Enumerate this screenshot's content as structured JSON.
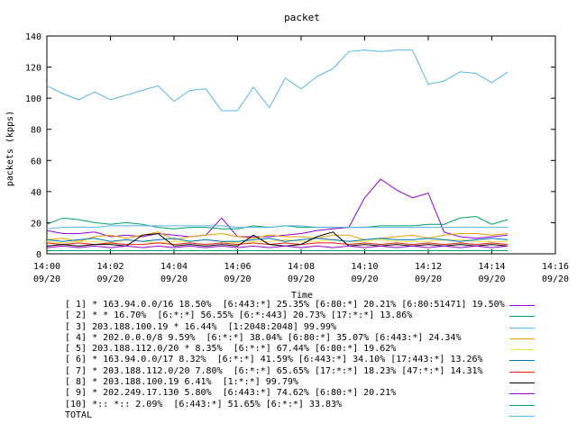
{
  "chart_data": {
    "type": "line",
    "title": "packet",
    "xlabel": "Time",
    "ylabel": "packets (kpps)",
    "ylim": [
      0,
      140
    ],
    "yticks": [
      0,
      20,
      40,
      60,
      80,
      100,
      120,
      140
    ],
    "xlim": [
      0,
      16
    ],
    "xtick_values": [
      0,
      2,
      4,
      6,
      8,
      10,
      12,
      14,
      16
    ],
    "xtick_labels": [
      [
        "14:00",
        "09/20"
      ],
      [
        "14:02",
        "09/20"
      ],
      [
        "14:04",
        "09/20"
      ],
      [
        "14:06",
        "09/20"
      ],
      [
        "14:08",
        "09/20"
      ],
      [
        "14:10",
        "09/20"
      ],
      [
        "14:12",
        "09/20"
      ],
      [
        "14:14",
        "09/20"
      ],
      [
        "14:16",
        "09/20"
      ]
    ],
    "grid": false,
    "legend_position": "below",
    "x": [
      0,
      0.5,
      1,
      1.5,
      2,
      2.5,
      3,
      3.5,
      4,
      4.5,
      5,
      5.5,
      6,
      6.5,
      7,
      7.5,
      8,
      8.5,
      9,
      9.5,
      10,
      10.5,
      11,
      11.5,
      12,
      12.5,
      13,
      13.5,
      14,
      14.5
    ],
    "series": [
      {
        "name": "[ 1] * 163.94.0.0/16 18.50%  [6:443:*] 25.35% [6:80:*] 20.21% [6:80:51471] 19.50%",
        "color": "#9400d3",
        "values": [
          15,
          13,
          13,
          14,
          11,
          12,
          11,
          13,
          12,
          11,
          12,
          23,
          11,
          11,
          11,
          12,
          13,
          15,
          16,
          17,
          36,
          48,
          41,
          36,
          39,
          14,
          11,
          10,
          11,
          12
        ]
      },
      {
        "name": "[ 2] * * 16.70%  [6:*:*] 56.55% [6:*:443] 20.73% [17:*:*] 13.86%",
        "color": "#009e73",
        "values": [
          19,
          23,
          22,
          20,
          19,
          20,
          19,
          17,
          16,
          17,
          17,
          16,
          16,
          18,
          17,
          18,
          17,
          17,
          17,
          17,
          17,
          18,
          18,
          18,
          19,
          19,
          23,
          24,
          19,
          22
        ]
      },
      {
        "name": "[ 3] 203.188.100.19 * 16.44%  [1:2048:2048] 99.99%",
        "color": "#56b4e9",
        "values": [
          16,
          17,
          17,
          17,
          18,
          18,
          18,
          18,
          18,
          18,
          18,
          18,
          17,
          17,
          17,
          18,
          18,
          17,
          17,
          17,
          17,
          17,
          17,
          17,
          17,
          17,
          17,
          17,
          17,
          17
        ]
      },
      {
        "name": "[ 4] * 202.0.0.0/8 9.59%  [6:*:*] 38.04% [6:80:*] 35.07% [6:443:*] 24.34%",
        "color": "#e69f00",
        "values": [
          9,
          10,
          8,
          11,
          12,
          10,
          12,
          14,
          9,
          11,
          12,
          13,
          11,
          10,
          12,
          11,
          11,
          10,
          12,
          12,
          9,
          10,
          11,
          12,
          10,
          12,
          13,
          13,
          12,
          13
        ]
      },
      {
        "name": "[ 5] 203.188.112.0/20 * 8.35%  [6:*:*] 67.44% [6:80:*] 19.62%",
        "color": "#f0e442",
        "values": [
          8,
          7,
          8,
          8,
          7,
          9,
          8,
          7,
          8,
          8,
          9,
          8,
          7,
          8,
          8,
          9,
          8,
          8,
          9,
          8,
          8,
          9,
          8,
          8,
          8,
          9,
          9,
          8,
          8,
          8
        ]
      },
      {
        "name": "[ 6] * 163.94.0.0/17 8.32%  [6:*:*] 41.59% [6:443:*] 34.10% [17:443:*] 13.26%",
        "color": "#0072b2",
        "values": [
          9,
          8,
          9,
          10,
          8,
          9,
          8,
          9,
          10,
          8,
          9,
          8,
          8,
          9,
          10,
          8,
          9,
          10,
          9,
          8,
          9,
          10,
          9,
          9,
          10,
          9,
          8,
          9,
          10,
          9
        ]
      },
      {
        "name": "[ 7] * 203.188.112.0/20 7.80%  [6:*:*] 65.65% [17:*:*] 18.23% [47:*:*] 14.31%",
        "color": "#e51e10",
        "values": [
          7,
          6,
          7,
          6,
          7,
          6,
          6,
          7,
          6,
          7,
          6,
          7,
          6,
          7,
          6,
          7,
          6,
          7,
          7,
          6,
          7,
          6,
          7,
          6,
          7,
          6,
          7,
          6,
          7,
          6
        ]
      },
      {
        "name": "[ 8] * 203.188.100.19 6.41%  [1:*:*] 99.79%",
        "color": "#000000",
        "values": [
          5,
          6,
          5,
          6,
          6,
          5,
          12,
          13,
          5,
          6,
          5,
          6,
          5,
          12,
          6,
          5,
          6,
          11,
          14,
          5,
          6,
          5,
          6,
          5,
          6,
          5,
          6,
          5,
          6,
          5
        ]
      },
      {
        "name": "[ 9] * 202.249.17.130 5.80%  [6:443:*] 74.62% [6:80:*] 20.21%",
        "color": "#9400d3",
        "values": [
          4,
          5,
          4,
          5,
          4,
          5,
          4,
          5,
          4,
          5,
          4,
          5,
          4,
          5,
          4,
          5,
          4,
          5,
          4,
          5,
          4,
          5,
          4,
          5,
          4,
          5,
          4,
          5,
          4,
          5
        ]
      },
      {
        "name": "[10] *:: *:: 2.09%  [6:443:*] 51.65% [6:*:*] 33.83%",
        "color": "#009e73",
        "values": [
          2,
          2,
          2,
          2,
          2,
          2,
          2,
          2,
          2,
          2,
          2,
          2,
          2,
          2,
          2,
          2,
          2,
          2,
          2,
          2,
          2,
          2,
          2,
          2,
          2,
          2,
          2,
          2,
          2,
          2
        ]
      },
      {
        "name": "TOTAL",
        "color": "#56b4e9",
        "values": [
          108,
          103,
          99,
          104,
          99,
          102,
          105,
          108,
          98,
          105,
          106,
          92,
          92,
          107,
          94,
          113,
          106,
          114,
          119,
          130,
          131,
          130,
          131,
          131,
          109,
          111,
          117,
          116,
          110,
          117
        ]
      }
    ]
  }
}
